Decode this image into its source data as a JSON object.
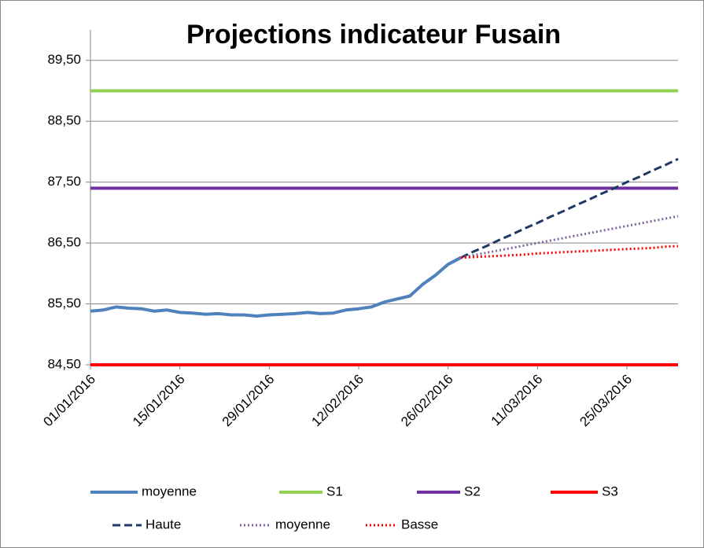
{
  "chart_data": {
    "type": "line",
    "title": "Projections indicateur Fusain",
    "x": [
      "01/01/2016",
      "03/01/2016",
      "05/01/2016",
      "07/01/2016",
      "09/01/2016",
      "11/01/2016",
      "13/01/2016",
      "15/01/2016",
      "17/01/2016",
      "19/01/2016",
      "21/01/2016",
      "23/01/2016",
      "25/01/2016",
      "27/01/2016",
      "29/01/2016",
      "31/01/2016",
      "02/02/2016",
      "04/02/2016",
      "06/02/2016",
      "08/02/2016",
      "10/02/2016",
      "12/02/2016",
      "14/02/2016",
      "16/02/2016",
      "18/02/2016",
      "20/02/2016",
      "22/02/2016",
      "24/02/2016",
      "26/02/2016",
      "28/02/2016",
      "01/03/2016",
      "03/03/2016",
      "05/03/2016",
      "07/03/2016",
      "09/03/2016",
      "11/03/2016",
      "13/03/2016",
      "15/03/2016",
      "17/03/2016",
      "19/03/2016",
      "21/03/2016",
      "23/03/2016",
      "25/03/2016",
      "27/03/2016",
      "29/03/2016",
      "31/03/2016",
      "02/04/2016"
    ],
    "xlim": [
      "01/01/2016",
      "02/04/2016"
    ],
    "xticks": [
      "01/01/2016",
      "15/01/2016",
      "29/01/2016",
      "12/02/2016",
      "26/02/2016",
      "11/03/2016",
      "25/03/2016"
    ],
    "ylim": [
      84.5,
      90
    ],
    "yticks": [
      {
        "value": 84.5,
        "label": "84,50"
      },
      {
        "value": 85.5,
        "label": "85,50"
      },
      {
        "value": 86.5,
        "label": "86,50"
      },
      {
        "value": 87.5,
        "label": "87,50"
      },
      {
        "value": 88.5,
        "label": "88,50"
      },
      {
        "value": 89.5,
        "label": "89,50"
      }
    ],
    "grid": true,
    "legend": "bottom",
    "series": [
      {
        "name": "moyenne",
        "color": "#4f81bd",
        "line_style": "solid",
        "values": [
          85.38,
          85.4,
          85.45,
          85.43,
          85.42,
          85.38,
          85.4,
          85.36,
          85.35,
          85.33,
          85.34,
          85.32,
          85.32,
          85.3,
          85.32,
          85.33,
          85.34,
          85.36,
          85.34,
          85.35,
          85.4,
          85.42,
          85.45,
          85.53,
          85.58,
          85.63,
          85.82,
          85.97,
          86.15,
          86.26,
          null,
          null,
          null,
          null,
          null,
          null,
          null,
          null,
          null,
          null,
          null,
          null,
          null,
          null,
          null,
          null,
          null
        ]
      },
      {
        "name": "S1",
        "color": "#92d050",
        "line_style": "solid",
        "values": [
          89,
          89,
          89,
          89,
          89,
          89,
          89,
          89,
          89,
          89,
          89,
          89,
          89,
          89,
          89,
          89,
          89,
          89,
          89,
          89,
          89,
          89,
          89,
          89,
          89,
          89,
          89,
          89,
          89,
          89,
          89,
          89,
          89,
          89,
          89,
          89,
          89,
          89,
          89,
          89,
          89,
          89,
          89,
          89,
          89,
          89,
          89
        ]
      },
      {
        "name": "S2",
        "color": "#7030a0",
        "line_style": "solid",
        "values": [
          87.4,
          87.4,
          87.4,
          87.4,
          87.4,
          87.4,
          87.4,
          87.4,
          87.4,
          87.4,
          87.4,
          87.4,
          87.4,
          87.4,
          87.4,
          87.4,
          87.4,
          87.4,
          87.4,
          87.4,
          87.4,
          87.4,
          87.4,
          87.4,
          87.4,
          87.4,
          87.4,
          87.4,
          87.4,
          87.4,
          87.4,
          87.4,
          87.4,
          87.4,
          87.4,
          87.4,
          87.4,
          87.4,
          87.4,
          87.4,
          87.4,
          87.4,
          87.4,
          87.4,
          87.4,
          87.4,
          87.4
        ]
      },
      {
        "name": "S3",
        "color": "#ff0000",
        "line_style": "solid",
        "values": [
          84.5,
          84.5,
          84.5,
          84.5,
          84.5,
          84.5,
          84.5,
          84.5,
          84.5,
          84.5,
          84.5,
          84.5,
          84.5,
          84.5,
          84.5,
          84.5,
          84.5,
          84.5,
          84.5,
          84.5,
          84.5,
          84.5,
          84.5,
          84.5,
          84.5,
          84.5,
          84.5,
          84.5,
          84.5,
          84.5,
          84.5,
          84.5,
          84.5,
          84.5,
          84.5,
          84.5,
          84.5,
          84.5,
          84.5,
          84.5,
          84.5,
          84.5,
          84.5,
          84.5,
          84.5,
          84.5,
          84.5
        ]
      },
      {
        "name": "Haute",
        "color": "#1f3864",
        "line_style": "dashed",
        "values": [
          null,
          null,
          null,
          null,
          null,
          null,
          null,
          null,
          null,
          null,
          null,
          null,
          null,
          null,
          null,
          null,
          null,
          null,
          null,
          null,
          null,
          null,
          null,
          null,
          null,
          null,
          null,
          null,
          null,
          86.26,
          86.36,
          86.45,
          86.55,
          86.64,
          86.74,
          86.83,
          86.93,
          87.02,
          87.12,
          87.21,
          87.31,
          87.4,
          87.5,
          87.59,
          87.69,
          87.78,
          87.88
        ]
      },
      {
        "name": "moyenne",
        "color": "#8064a2",
        "line_style": "dotted",
        "values": [
          null,
          null,
          null,
          null,
          null,
          null,
          null,
          null,
          null,
          null,
          null,
          null,
          null,
          null,
          null,
          null,
          null,
          null,
          null,
          null,
          null,
          null,
          null,
          null,
          null,
          null,
          null,
          null,
          null,
          86.26,
          86.3,
          86.34,
          86.38,
          86.42,
          86.46,
          86.5,
          86.54,
          86.58,
          86.62,
          86.66,
          86.7,
          86.74,
          86.78,
          86.82,
          86.86,
          86.9,
          86.94
        ]
      },
      {
        "name": "Basse",
        "color": "#ff0000",
        "line_style": "dotted",
        "values": [
          null,
          null,
          null,
          null,
          null,
          null,
          null,
          null,
          null,
          null,
          null,
          null,
          null,
          null,
          null,
          null,
          null,
          null,
          null,
          null,
          null,
          null,
          null,
          null,
          null,
          null,
          null,
          null,
          null,
          86.26,
          86.27,
          86.28,
          86.29,
          86.3,
          86.31,
          86.33,
          86.34,
          86.35,
          86.36,
          86.37,
          86.38,
          86.39,
          86.4,
          86.41,
          86.42,
          86.44,
          86.45
        ]
      }
    ]
  }
}
